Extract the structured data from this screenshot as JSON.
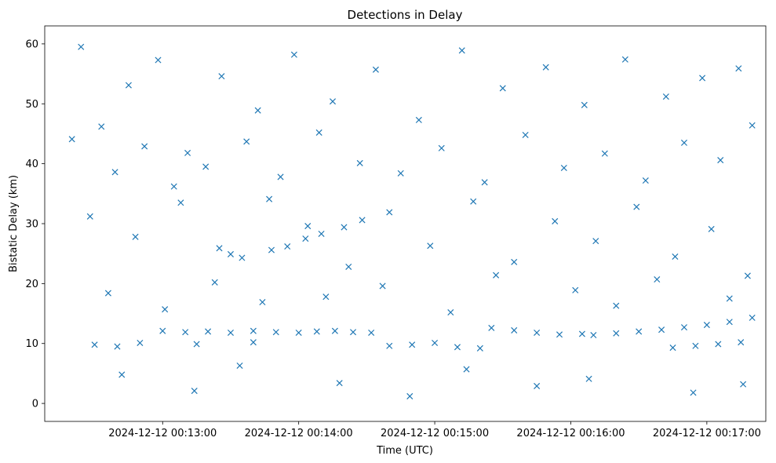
{
  "chart_data": {
    "type": "scatter",
    "title": "Detections in Delay",
    "xlabel": "Time (UTC)",
    "ylabel": "Bistatic Delay (km)",
    "x_tick_labels": [
      "2024-12-12 00:13:00",
      "2024-12-12 00:14:00",
      "2024-12-12 00:15:00",
      "2024-12-12 00:16:00",
      "2024-12-12 00:17:00"
    ],
    "y_tick_labels": [
      "0",
      "10",
      "20",
      "30",
      "40",
      "50",
      "60"
    ],
    "x_ticks": [
      "2024-12-12T00:13:00Z",
      "2024-12-12T00:14:00Z",
      "2024-12-12T00:15:00Z",
      "2024-12-12T00:16:00Z",
      "2024-12-12T00:17:00Z"
    ],
    "y_ticks": [
      0,
      10,
      20,
      30,
      40,
      50,
      60
    ],
    "xlim": [
      "2024-12-12T00:12:08Z",
      "2024-12-12T00:17:26Z"
    ],
    "ylim": [
      -3,
      63
    ],
    "grid": false,
    "marker": "x",
    "color": "#1f77b4",
    "series": [
      {
        "x": [
          "2024-12-12T00:12:24Z",
          "2024-12-12T00:12:33Z",
          "2024-12-12T00:12:45Z",
          "2024-12-12T00:12:58Z",
          "2024-12-12T00:13:11Z",
          "2024-12-12T00:13:26Z",
          "2024-12-12T00:13:42Z",
          "2024-12-12T00:13:58Z",
          "2024-12-12T00:14:15Z",
          "2024-12-12T00:14:34Z",
          "2024-12-12T00:14:53Z",
          "2024-12-12T00:15:12Z",
          "2024-12-12T00:15:30Z",
          "2024-12-12T00:15:49Z",
          "2024-12-12T00:16:06Z",
          "2024-12-12T00:16:24Z",
          "2024-12-12T00:16:42Z",
          "2024-12-12T00:16:58Z",
          "2024-12-12T00:17:14Z",
          "2024-12-12T00:12:20Z",
          "2024-12-12T00:12:39Z",
          "2024-12-12T00:12:52Z",
          "2024-12-12T00:13:05Z",
          "2024-12-12T00:13:19Z",
          "2024-12-12T00:13:37Z",
          "2024-12-12T00:13:52Z",
          "2024-12-12T00:14:09Z",
          "2024-12-12T00:14:27Z",
          "2024-12-12T00:14:45Z",
          "2024-12-12T00:15:03Z",
          "2024-12-12T00:15:22Z",
          "2024-12-12T00:15:40Z",
          "2024-12-12T00:15:57Z",
          "2024-12-12T00:16:15Z",
          "2024-12-12T00:16:33Z",
          "2024-12-12T00:16:50Z",
          "2024-12-12T00:17:06Z",
          "2024-12-12T00:17:20Z",
          "2024-12-12T00:12:28Z",
          "2024-12-12T00:12:48Z",
          "2024-12-12T00:13:08Z",
          "2024-12-12T00:13:30Z",
          "2024-12-12T00:13:47Z",
          "2024-12-12T00:14:04Z",
          "2024-12-12T00:14:22Z",
          "2024-12-12T00:14:40Z",
          "2024-12-12T00:14:58Z",
          "2024-12-12T00:15:17Z",
          "2024-12-12T00:15:35Z",
          "2024-12-12T00:15:53Z",
          "2024-12-12T00:16:11Z",
          "2024-12-12T00:16:29Z",
          "2024-12-12T00:16:46Z",
          "2024-12-12T00:17:02Z",
          "2024-12-12T00:17:18Z",
          "2024-12-12T00:12:36Z",
          "2024-12-12T00:13:01Z",
          "2024-12-12T00:13:23Z",
          "2024-12-12T00:13:44Z",
          "2024-12-12T00:14:12Z",
          "2024-12-12T00:14:37Z",
          "2024-12-12T00:15:07Z",
          "2024-12-12T00:15:27Z",
          "2024-12-12T00:16:02Z",
          "2024-12-12T00:16:20Z",
          "2024-12-12T00:16:38Z",
          "2024-12-12T00:17:10Z",
          "2024-12-12T00:12:42Z",
          "2024-12-12T00:13:14Z",
          "2024-12-12T00:13:34Z",
          "2024-12-12T00:14:18Z",
          "2024-12-12T00:14:49Z",
          "2024-12-12T00:15:14Z",
          "2024-12-12T00:15:45Z",
          "2024-12-12T00:16:08Z",
          "2024-12-12T00:16:54Z",
          "2024-12-12T00:17:16Z",
          "2024-12-12T00:13:00Z",
          "2024-12-12T00:13:10Z",
          "2024-12-12T00:13:20Z",
          "2024-12-12T00:13:30Z",
          "2024-12-12T00:13:40Z",
          "2024-12-12T00:13:50Z",
          "2024-12-12T00:14:00Z",
          "2024-12-12T00:14:08Z",
          "2024-12-12T00:14:16Z",
          "2024-12-12T00:14:24Z",
          "2024-12-12T00:14:32Z",
          "2024-12-12T00:13:25Z",
          "2024-12-12T00:13:35Z",
          "2024-12-12T00:13:48Z",
          "2024-12-12T00:13:55Z",
          "2024-12-12T00:14:03Z",
          "2024-12-12T00:14:10Z",
          "2024-12-12T00:14:20Z",
          "2024-12-12T00:14:28Z",
          "2024-12-12T00:15:25Z",
          "2024-12-12T00:15:35Z",
          "2024-12-12T00:15:45Z",
          "2024-12-12T00:15:55Z",
          "2024-12-12T00:16:05Z",
          "2024-12-12T00:16:10Z",
          "2024-12-12T00:16:20Z",
          "2024-12-12T00:16:30Z",
          "2024-12-12T00:16:40Z",
          "2024-12-12T00:16:50Z",
          "2024-12-12T00:17:00Z",
          "2024-12-12T00:17:10Z",
          "2024-12-12T00:17:20Z",
          "2024-12-12T00:12:30Z",
          "2024-12-12T00:12:40Z",
          "2024-12-12T00:12:50Z",
          "2024-12-12T00:13:15Z",
          "2024-12-12T00:13:40Z",
          "2024-12-12T00:14:40Z",
          "2024-12-12T00:14:50Z",
          "2024-12-12T00:15:00Z",
          "2024-12-12T00:15:10Z",
          "2024-12-12T00:15:20Z",
          "2024-12-12T00:16:45Z",
          "2024-12-12T00:16:55Z",
          "2024-12-12T00:17:05Z",
          "2024-12-12T00:17:15Z"
        ],
        "y": [
          59.5,
          46.2,
          53.1,
          57.3,
          41.8,
          54.6,
          48.9,
          58.2,
          50.4,
          55.7,
          47.3,
          58.9,
          52.6,
          56.1,
          49.8,
          57.4,
          51.2,
          54.3,
          55.9,
          44.1,
          38.6,
          42.9,
          36.2,
          39.5,
          43.7,
          37.8,
          45.2,
          40.1,
          38.4,
          42.6,
          36.9,
          44.8,
          39.3,
          41.7,
          37.2,
          43.5,
          40.6,
          46.4,
          31.2,
          27.8,
          33.5,
          24.9,
          34.1,
          29.6,
          22.8,
          31.9,
          26.3,
          33.7,
          23.6,
          30.4,
          27.1,
          32.8,
          24.5,
          29.1,
          21.3,
          18.4,
          15.7,
          20.2,
          16.9,
          17.8,
          19.6,
          15.2,
          21.4,
          18.9,
          16.3,
          20.7,
          17.5,
          4.8,
          2.1,
          6.3,
          3.4,
          1.2,
          5.7,
          2.9,
          4.1,
          1.8,
          3.2,
          12.1,
          11.9,
          12.0,
          11.8,
          12.1,
          11.9,
          11.8,
          12.0,
          12.1,
          11.9,
          11.8,
          25.9,
          24.3,
          25.6,
          26.2,
          27.5,
          28.3,
          29.4,
          30.6,
          12.6,
          12.2,
          11.8,
          11.5,
          11.6,
          11.4,
          11.7,
          12.0,
          12.3,
          12.7,
          13.1,
          13.6,
          14.3,
          9.8,
          9.5,
          10.1,
          9.9,
          10.2,
          9.6,
          9.8,
          10.1,
          9.4,
          9.2,
          9.3,
          9.6,
          9.9,
          10.2
        ]
      }
    ]
  }
}
